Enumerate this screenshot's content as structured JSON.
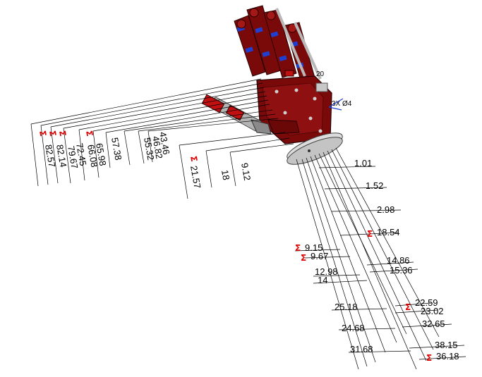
{
  "colors": {
    "hand_body": "#7a0a0a",
    "hand_dark": "#4a0505",
    "hand_light": "#a51818",
    "blue": "#1f3fd0",
    "grey": "#b9b9b9",
    "sigma": "#e00000",
    "line": "#000000"
  },
  "icons": {
    "sigma": "sigma-icon"
  },
  "sigma_symbol": "Σ",
  "annotations": {
    "dim_20": "20",
    "axis_label": "3X Ø4"
  },
  "left_group": {
    "dims": [
      "82.57",
      "82.14",
      "79.67",
      "72.45",
      "66.08",
      "65.98",
      "57.38",
      "55.32",
      "46.82",
      "43.46",
      "21.57",
      "18",
      "9.12"
    ]
  },
  "right_group": {
    "dims": [
      "1.01",
      "1.52",
      "2.98",
      "18.54",
      "9.15",
      "9.67",
      "12.98",
      "14",
      "14.86",
      "15.36",
      "25.18",
      "22.59",
      "23.02",
      "24.68",
      "32.65",
      "31.68",
      "38.15",
      "36.18"
    ]
  }
}
